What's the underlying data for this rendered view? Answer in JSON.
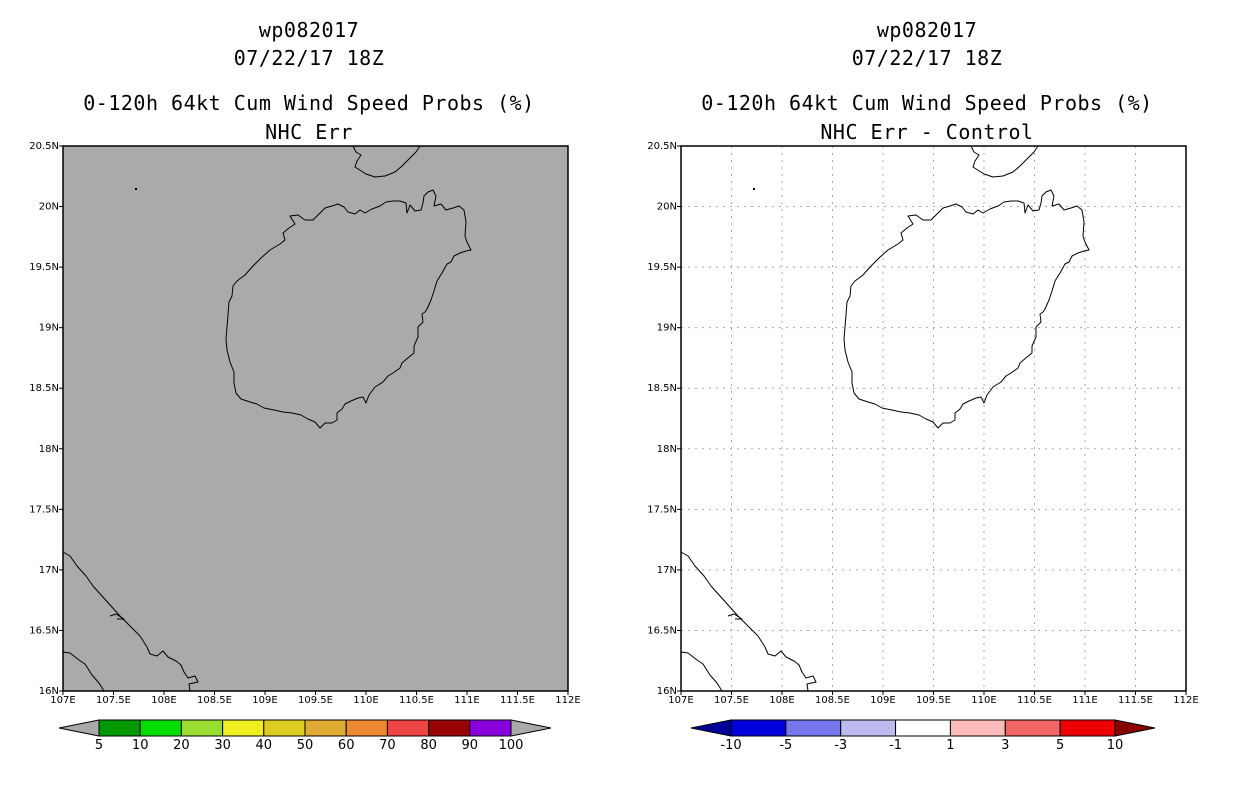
{
  "panels": [
    {
      "storm_id": "wp082017",
      "datetime": "07/22/17 18Z",
      "product": "0-120h 64kt Cum Wind Speed Probs (%)",
      "subtitle": "NHC Err",
      "map_fill": "#aaaaaa",
      "gridlines": false,
      "colorbar": {
        "colors": [
          "#009900",
          "#00dd00",
          "#99dd33",
          "#eeee22",
          "#ddcc22",
          "#ddaa33",
          "#ee8833",
          "#ee4444",
          "#990000",
          "#8800dd"
        ],
        "end_colors": [
          "#aaaaaa",
          "#aaaaaa"
        ],
        "labels": [
          "5",
          "10",
          "20",
          "30",
          "40",
          "50",
          "60",
          "70",
          "80",
          "90",
          "100"
        ]
      }
    },
    {
      "storm_id": "wp082017",
      "datetime": "07/22/17 18Z",
      "product": "0-120h 64kt Cum Wind Speed Probs (%)",
      "subtitle": "NHC Err - Control",
      "map_fill": "#ffffff",
      "gridlines": true,
      "colorbar": {
        "colors": [
          "#0000dd",
          "#7777ee",
          "#bbbbee",
          "#ffffff",
          "#ffbbbb",
          "#ee6666",
          "#ee0000"
        ],
        "end_colors": [
          "#000099",
          "#880000"
        ],
        "labels": [
          "-10",
          "-5",
          "-3",
          "-1",
          "1",
          "3",
          "5",
          "10"
        ]
      }
    }
  ],
  "map": {
    "lon_labels": [
      "107E",
      "107.5E",
      "108E",
      "108.5E",
      "109E",
      "109.5E",
      "110E",
      "110.5E",
      "111E",
      "111.5E",
      "112E"
    ],
    "lat_labels": [
      "20.5N",
      "20N",
      "19.5N",
      "19N",
      "18.5N",
      "18N",
      "17.5N",
      "17N",
      "16.5N",
      "16N"
    ]
  }
}
